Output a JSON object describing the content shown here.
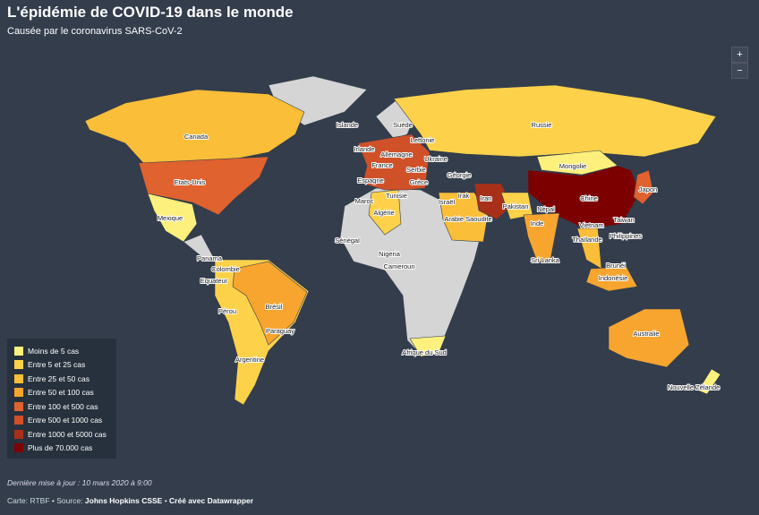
{
  "header": {
    "title": "L'épidémie de COVID-19 dans le monde",
    "subtitle": "Causée par le coronavirus SARS-CoV-2"
  },
  "zoom": [
    "+",
    "−"
  ],
  "legend": [
    {
      "label": "Moins de 5 cas",
      "color": "#fdf07c"
    },
    {
      "label": "Entre 5 et 25 cas",
      "color": "#fdd24a"
    },
    {
      "label": "Entre 25 et 50 cas",
      "color": "#fbbe38"
    },
    {
      "label": "Entre 50 et 100 cas",
      "color": "#f7a52f"
    },
    {
      "label": "Entre 100 et 500 cas",
      "color": "#e0622f"
    },
    {
      "label": "Entre 500 et 1000 cas",
      "color": "#d05028"
    },
    {
      "label": "Entre 1000 et 5000 cas",
      "color": "#a93018"
    },
    {
      "label": "Plus de 70.000 cas",
      "color": "#7d0000"
    }
  ],
  "labels": [
    "Islande",
    "Suède",
    "Canada",
    "Russie",
    "Lettonie",
    "Irlande",
    "Allemagne",
    "Ukraine",
    "France",
    "Serbie",
    "Mongolie",
    "Grèce",
    "Géorgie",
    "Etats-Unis",
    "Espagne",
    "Japon",
    "Tunisie",
    "Irak",
    "Iran",
    "Chine",
    "Maroc",
    "Israël",
    "Pakistan",
    "Népal",
    "Algérie",
    "Mexique",
    "Arabie Saoudite",
    "Taiwan",
    "Inde",
    "Vietnam",
    "Sénégal",
    "Philippines",
    "Thaïlande",
    "Nigeria",
    "Panama",
    "Sri Lanka",
    "Brunéi",
    "Colombie",
    "Cameroun",
    "Equateur",
    "Indonésie",
    "Pérou",
    "Brésil",
    "Paraguay",
    "Australie",
    "Afrique du Sud",
    "Argentine",
    "Nouvelle Zélande"
  ],
  "footer": {
    "updated": "Dernière mise à jour : 10 mars 2020 à 9:00",
    "credit": [
      "Carte: RTBF • Source: ",
      "Johns Hopkins CSSE",
      " • ",
      "Créé avec Datawrapper"
    ]
  }
}
